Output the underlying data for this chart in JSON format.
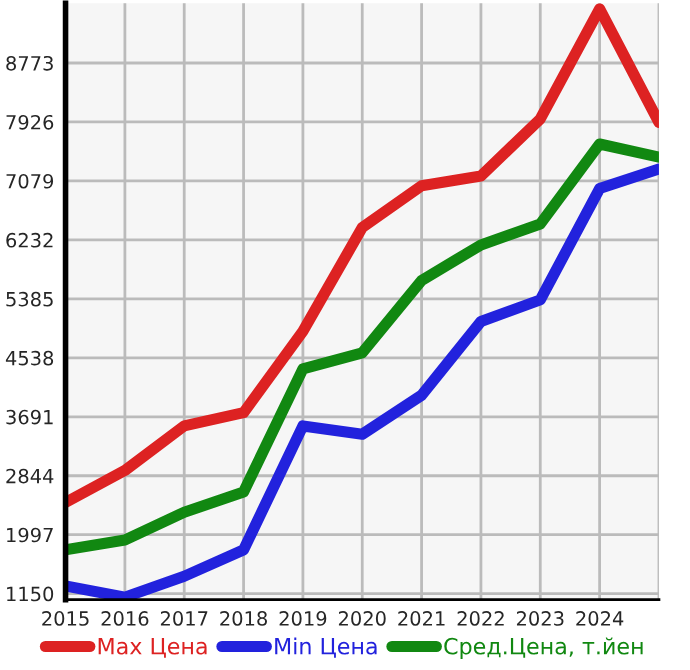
{
  "chart_data": {
    "type": "line",
    "x": [
      2015,
      2016,
      2017,
      2018,
      2019,
      2020,
      2021,
      2022,
      2023,
      2024,
      2025
    ],
    "series": [
      {
        "name": "Max Цена",
        "color": "#dd2222",
        "values": [
          2460,
          2920,
          3560,
          3750,
          4920,
          6410,
          7010,
          7150,
          7970,
          9550,
          7920
        ]
      },
      {
        "name": "Min Цена",
        "color": "#2222dd",
        "values": [
          1260,
          1100,
          1400,
          1780,
          3560,
          3440,
          4000,
          5060,
          5370,
          6970,
          7250
        ]
      },
      {
        "name": "Сред.Цена, т.йен",
        "color": "#118811",
        "values": [
          1780,
          1920,
          2320,
          2610,
          4380,
          4610,
          5650,
          6160,
          6460,
          7610,
          7420
        ]
      }
    ],
    "xlim": [
      2015,
      2025
    ],
    "ylim": [
      1064,
      9630
    ],
    "xticks": [
      2015,
      2016,
      2017,
      2018,
      2019,
      2020,
      2021,
      2022,
      2023,
      2024,
      {
        "value": 2025,
        "label": null
      }
    ],
    "yticks": [
      1150,
      1997,
      2844,
      3691,
      4538,
      5385,
      6232,
      7079,
      7926,
      8773
    ],
    "grid": true,
    "legend": "bottom",
    "marker": "none",
    "line_style": "solid"
  }
}
